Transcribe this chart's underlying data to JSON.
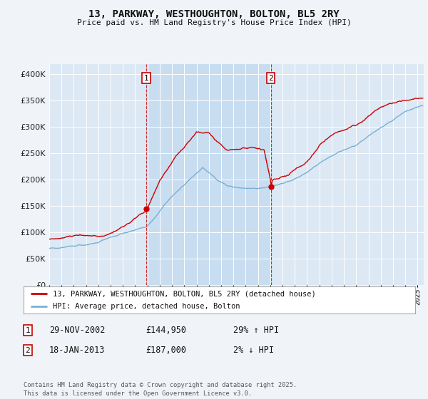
{
  "title_line1": "13, PARKWAY, WESTHOUGHTON, BOLTON, BL5 2RY",
  "title_line2": "Price paid vs. HM Land Registry's House Price Index (HPI)",
  "ylim": [
    0,
    420000
  ],
  "yticks": [
    0,
    50000,
    100000,
    150000,
    200000,
    250000,
    300000,
    350000,
    400000
  ],
  "ytick_labels": [
    "£0",
    "£50K",
    "£100K",
    "£150K",
    "£200K",
    "£250K",
    "£300K",
    "£350K",
    "£400K"
  ],
  "xlim_start": 1995.0,
  "xlim_end": 2025.5,
  "fig_bg_color": "#f0f4f8",
  "plot_bg_color": "#dce8f4",
  "shade_color": "#c8ddf0",
  "grid_color": "#ffffff",
  "sale1_date": 2002.917,
  "sale1_price": 144950,
  "sale1_label": "1",
  "sale2_date": 2013.042,
  "sale2_price": 187000,
  "sale2_label": "2",
  "legend_line1": "13, PARKWAY, WESTHOUGHTON, BOLTON, BL5 2RY (detached house)",
  "legend_line2": "HPI: Average price, detached house, Bolton",
  "annotation1_date": "29-NOV-2002",
  "annotation1_price": "£144,950",
  "annotation1_hpi": "29% ↑ HPI",
  "annotation2_date": "18-JAN-2013",
  "annotation2_price": "£187,000",
  "annotation2_hpi": "2% ↓ HPI",
  "footer": "Contains HM Land Registry data © Crown copyright and database right 2025.\nThis data is licensed under the Open Government Licence v3.0.",
  "red_color": "#cc0000",
  "blue_color": "#7ab0d4",
  "legend_border": "#aaaaaa"
}
